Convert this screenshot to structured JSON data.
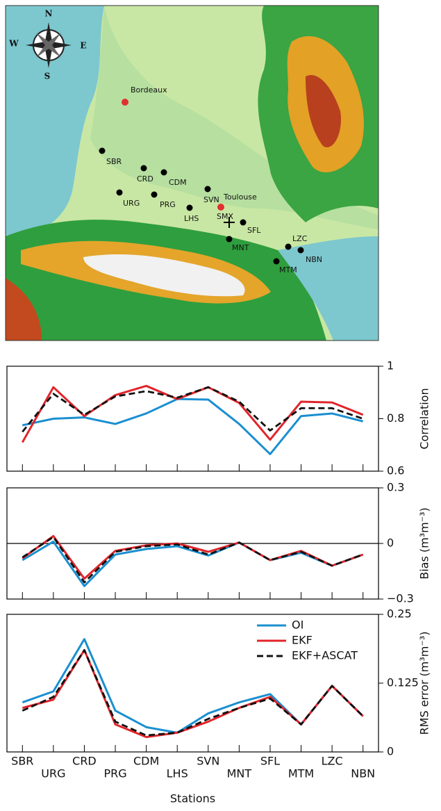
{
  "map": {
    "compass": [
      "N",
      "S",
      "W",
      "E"
    ],
    "cities": [
      "Bordeaux",
      "Toulouse"
    ],
    "stations": [
      "SBR",
      "CRD",
      "CDM",
      "URG",
      "PRG",
      "SVN",
      "LHS",
      "SMX",
      "SFL",
      "MNT",
      "LZC",
      "NBN",
      "MTM"
    ]
  },
  "chart_data": [
    {
      "type": "line",
      "y_label": "Correlation",
      "ylim": [
        0.6,
        1
      ],
      "yticks": [
        0.6,
        0.8,
        1
      ],
      "series": [
        {
          "color": "#1a8fd0",
          "style": "solid",
          "values": [
            0.775,
            0.8,
            0.805,
            0.78,
            0.82,
            0.875,
            0.873,
            0.78,
            0.665,
            0.81,
            0.82,
            0.79
          ]
        },
        {
          "color": "#e0252b",
          "style": "solid",
          "values": [
            0.71,
            0.92,
            0.81,
            0.89,
            0.925,
            0.875,
            0.92,
            0.86,
            0.72,
            0.865,
            0.862,
            0.815
          ]
        },
        {
          "color": "#111111",
          "style": "dashed",
          "values": [
            0.75,
            0.895,
            0.815,
            0.885,
            0.905,
            0.88,
            0.92,
            0.865,
            0.755,
            0.84,
            0.84,
            0.8
          ]
        }
      ]
    },
    {
      "type": "line",
      "y_label": "Bias (m³m⁻³)",
      "ylim": [
        -0.3,
        0.3
      ],
      "yticks": [
        {
          "value": -0.3,
          "label": "−0.3"
        },
        0,
        0.3
      ],
      "zero_line": true,
      "series": [
        {
          "color": "#1a8fd0",
          "style": "solid",
          "values": [
            -0.09,
            0.01,
            -0.23,
            -0.06,
            -0.03,
            -0.015,
            -0.065,
            0.005,
            -0.09,
            -0.05,
            -0.12,
            -0.06
          ]
        },
        {
          "color": "#e0252b",
          "style": "solid",
          "values": [
            -0.08,
            0.04,
            -0.19,
            -0.04,
            -0.01,
            0.0,
            -0.045,
            0.005,
            -0.09,
            -0.04,
            -0.12,
            -0.06
          ]
        },
        {
          "color": "#111111",
          "style": "dashed",
          "values": [
            -0.075,
            0.035,
            -0.21,
            -0.045,
            -0.015,
            -0.005,
            -0.06,
            0.005,
            -0.09,
            -0.045,
            -0.12,
            -0.06
          ]
        }
      ]
    },
    {
      "type": "line",
      "y_label": "RMS error (m³m⁻³)",
      "x_label": "Stations",
      "categories": [
        "SBR",
        "URG",
        "CRD",
        "PRG",
        "CDM",
        "LHS",
        "SVN",
        "MNT",
        "SFL",
        "MTM",
        "LZC",
        "NBN"
      ],
      "ylim": [
        0,
        0.25
      ],
      "yticks": [
        0,
        0.125,
        0.25
      ],
      "series": [
        {
          "name": "OI",
          "color": "#1a8fd0",
          "style": "solid",
          "values": [
            0.09,
            0.11,
            0.205,
            0.075,
            0.045,
            0.035,
            0.07,
            0.09,
            0.105,
            0.05,
            0.12,
            0.065
          ]
        },
        {
          "name": "EKF",
          "color": "#e0252b",
          "style": "solid",
          "values": [
            0.08,
            0.095,
            0.185,
            0.05,
            0.027,
            0.035,
            0.055,
            0.08,
            0.1,
            0.05,
            0.12,
            0.065
          ]
        },
        {
          "name": "EKF+ASCAT",
          "color": "#111111",
          "style": "dashed",
          "values": [
            0.075,
            0.1,
            0.185,
            0.055,
            0.03,
            0.035,
            0.06,
            0.08,
            0.097,
            0.05,
            0.12,
            0.065
          ]
        }
      ]
    }
  ]
}
